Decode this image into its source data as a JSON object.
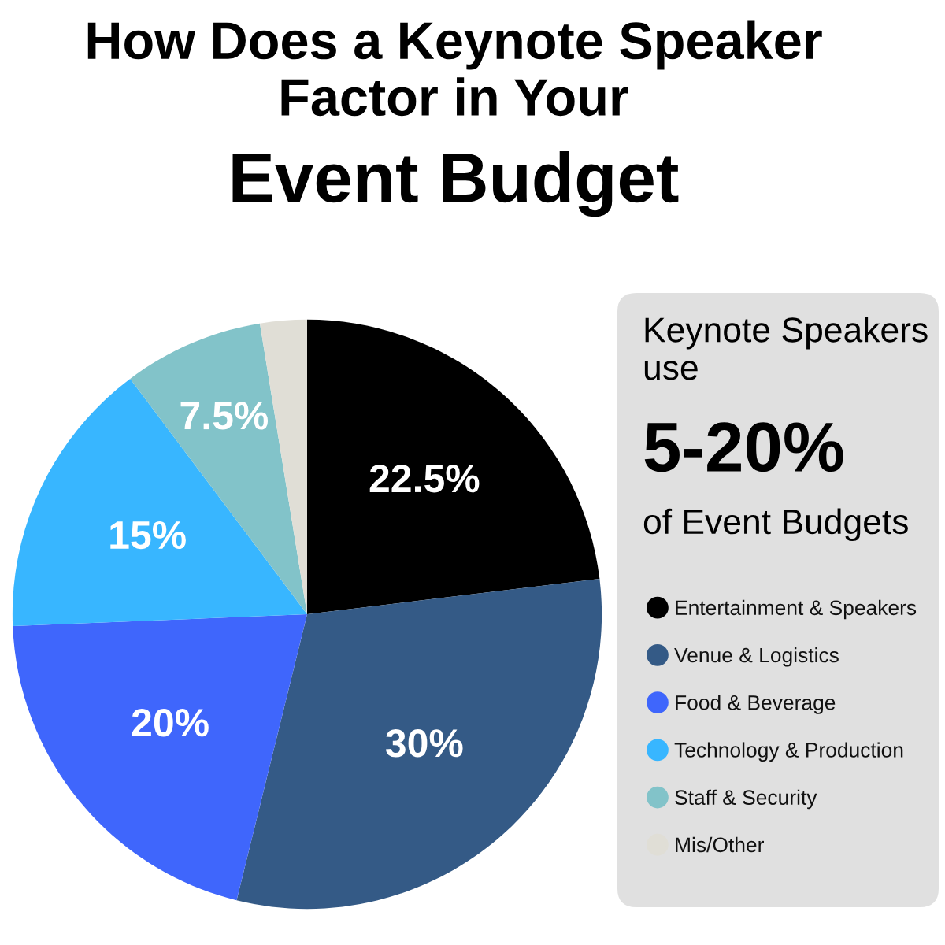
{
  "chart_data": {
    "type": "pie",
    "title": "How Does a Keynote Speaker Factor in Your",
    "subtitle": "Event Budget",
    "categories": [
      "Entertainment & Speakers",
      "Venue & Logistics",
      "Food & Beverage",
      "Technology & Production",
      "Staff & Security",
      "Mis/Other"
    ],
    "values": [
      22.5,
      30,
      20,
      15,
      7.5,
      2.5
    ],
    "colors": [
      "#000000",
      "#345a86",
      "#3f66fc",
      "#38b6ff",
      "#82c3c9",
      "#e0ded6"
    ],
    "value_labels": [
      "22.5%",
      "30%",
      "20%",
      "15%",
      "7.5%",
      null
    ],
    "legend": "right",
    "annotations": [
      "Keynote Speakers use",
      "5-20%",
      "of Event Budgets"
    ]
  }
}
